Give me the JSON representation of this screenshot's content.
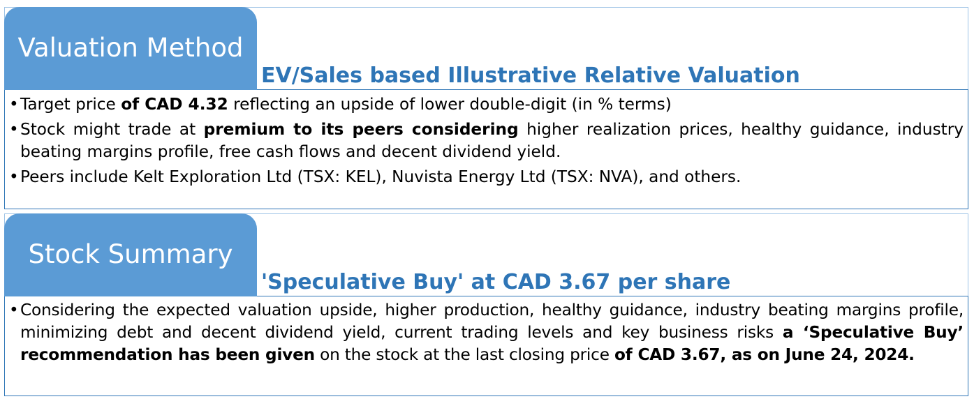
{
  "valuation": {
    "heading": "Valuation Method",
    "subtitle": "EV/Sales based Illustrative Relative Valuation",
    "bullets": [
      {
        "p1": "Target price ",
        "b1": "of CAD 4.32",
        "p2": " reflecting an upside of lower double-digit (in % terms)"
      },
      {
        "p1": "Stock might trade at ",
        "b1": "premium to its peers considering",
        "p2": " higher realization prices, healthy guidance, industry beating margins profile, free cash flows and decent dividend yield."
      },
      {
        "p1": "Peers include Kelt Exploration Ltd (TSX: KEL), Nuvista Energy Ltd (TSX: NVA), and others."
      }
    ]
  },
  "summary": {
    "heading": "Stock Summary",
    "subtitle": "'Speculative Buy' at CAD 3.67 per share",
    "bullet": {
      "p1": "Considering the expected valuation upside, higher production, healthy guidance, industry beating margins profile, minimizing debt and decent dividend yield, current trading levels and key business risks ",
      "b1": "a ‘Speculative Buy’ recommendation has been given",
      "p2": " on the stock at the last closing price ",
      "b2": "of CAD 3.67, as on June 24, 2024."
    }
  }
}
